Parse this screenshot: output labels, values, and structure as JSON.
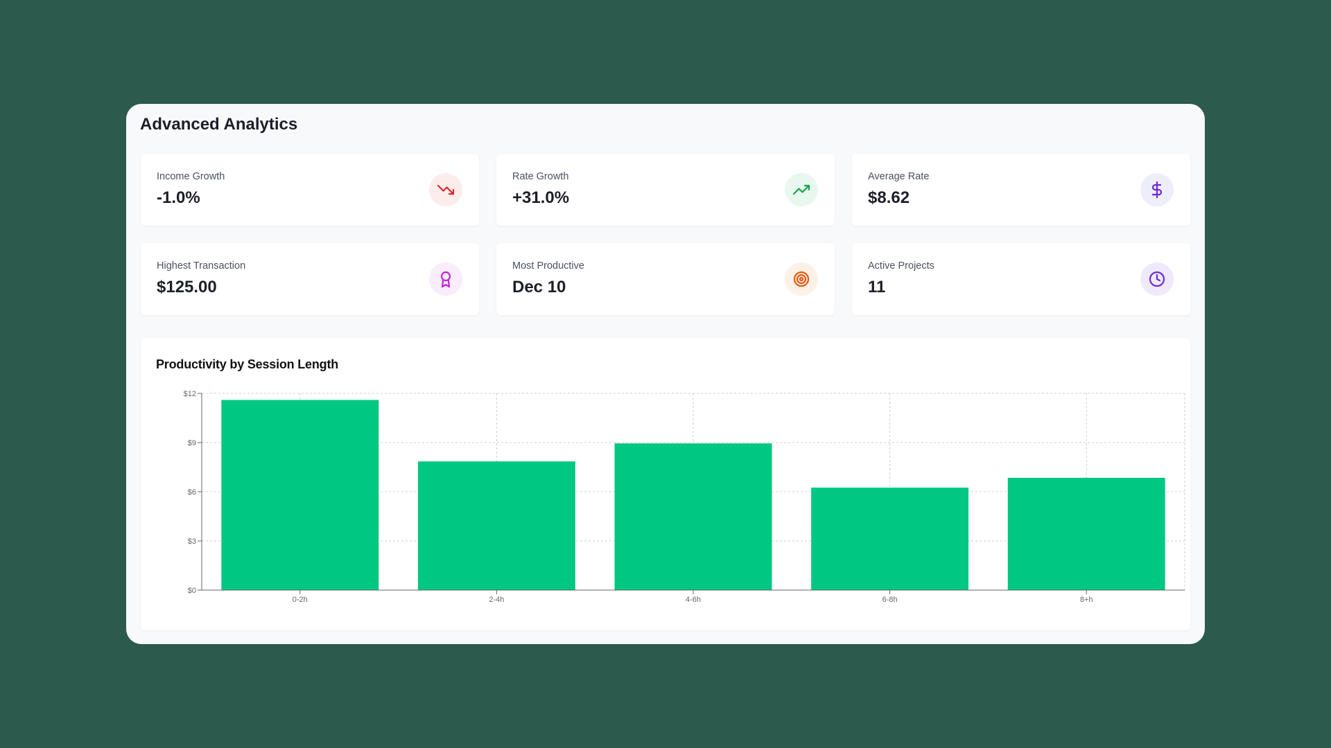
{
  "title": "Advanced Analytics",
  "colors": {
    "background": "#2c5a4c",
    "panel": "#f8f9fa",
    "bar": "#00c781",
    "negative": "#dc2626",
    "positive": "#16a34a",
    "purple": "#6d28d9",
    "magenta": "#c026d3",
    "orange": "#ea580c"
  },
  "stats": [
    {
      "label": "Income Growth",
      "value": "-1.0%",
      "icon": "trending-down-icon"
    },
    {
      "label": "Rate Growth",
      "value": "+31.0%",
      "icon": "trending-up-icon"
    },
    {
      "label": "Average Rate",
      "value": "$8.62",
      "icon": "dollar-icon"
    },
    {
      "label": "Highest Transaction",
      "value": "$125.00",
      "icon": "award-icon"
    },
    {
      "label": "Most Productive",
      "value": "Dec 10",
      "icon": "target-icon"
    },
    {
      "label": "Active Projects",
      "value": "11",
      "icon": "clock-icon"
    }
  ],
  "chart_data": {
    "type": "bar",
    "title": "Productivity by Session Length",
    "categories": [
      "0-2h",
      "2-4h",
      "4-6h",
      "6-8h",
      "8+h"
    ],
    "values": [
      11.6,
      7.85,
      8.95,
      6.25,
      6.85
    ],
    "ylim": [
      0,
      12
    ],
    "yticks": [
      0,
      3,
      6,
      9,
      12
    ],
    "ytick_labels": [
      "$0",
      "$3",
      "$6",
      "$9",
      "$12"
    ],
    "xlabel": "",
    "ylabel": "",
    "grid": true,
    "legend": false,
    "bar_color": "#00c781"
  }
}
